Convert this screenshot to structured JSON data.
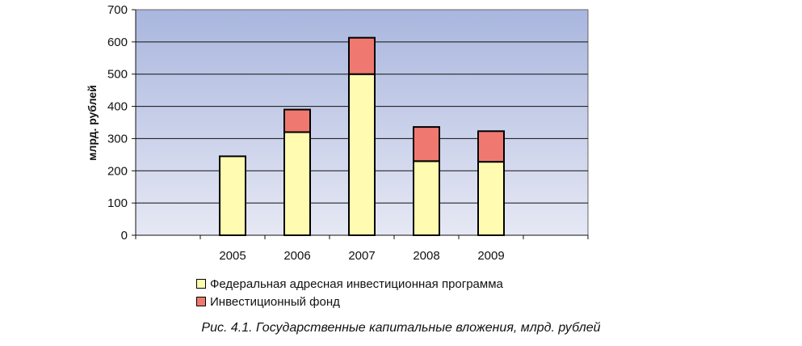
{
  "caption": "Рис. 4.1. Государственные капитальные вложения, млрд. рублей",
  "chart_data": {
    "type": "bar",
    "stacked": true,
    "categories": [
      "",
      "2005",
      "2006",
      "2007",
      "2008",
      "2009",
      ""
    ],
    "series": [
      {
        "name": "Федеральная адресная инвестиционная программа",
        "color": "#FFFBB0",
        "values": [
          null,
          245,
          320,
          500,
          230,
          228,
          null
        ]
      },
      {
        "name": "Инвестиционный фонд",
        "color": "#EF7970",
        "values": [
          null,
          0,
          70,
          113,
          106,
          95,
          null
        ]
      }
    ],
    "ylabel": "млрд. рублей",
    "ylim": [
      0,
      700
    ],
    "yticks": [
      0,
      100,
      200,
      300,
      400,
      500,
      600,
      700
    ],
    "grid": true,
    "plot_background": [
      "#A9B6DE",
      "#E6E8F4"
    ],
    "legend_position": "bottom"
  }
}
